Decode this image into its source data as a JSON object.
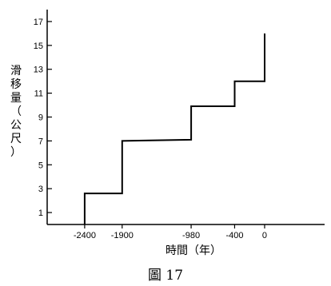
{
  "chart_data": {
    "type": "line",
    "title": "",
    "xlabel": "時間（年）",
    "ylabel": "滑移量（公尺）",
    "caption": "圖 17",
    "xlim": [
      -2900,
      800
    ],
    "ylim": [
      0,
      18
    ],
    "xticks": [
      -2400,
      -1900,
      -980,
      -400,
      0
    ],
    "xtick_labels": [
      "-2400",
      "-1900",
      "-980",
      "-400",
      "0"
    ],
    "yticks": [
      1,
      3,
      5,
      7,
      9,
      11,
      13,
      15,
      17
    ],
    "ytick_labels": [
      "1",
      "3",
      "5",
      "7",
      "9",
      "11",
      "13",
      "15",
      "17"
    ],
    "grid": false,
    "series": [
      {
        "x": [
          -2400,
          -2400,
          -1900,
          -1900,
          -980,
          -980,
          -400,
          -400,
          0,
          0
        ],
        "y": [
          0,
          2.6,
          2.6,
          7.0,
          7.1,
          9.9,
          9.9,
          12.0,
          12.0,
          16.0
        ]
      }
    ]
  }
}
